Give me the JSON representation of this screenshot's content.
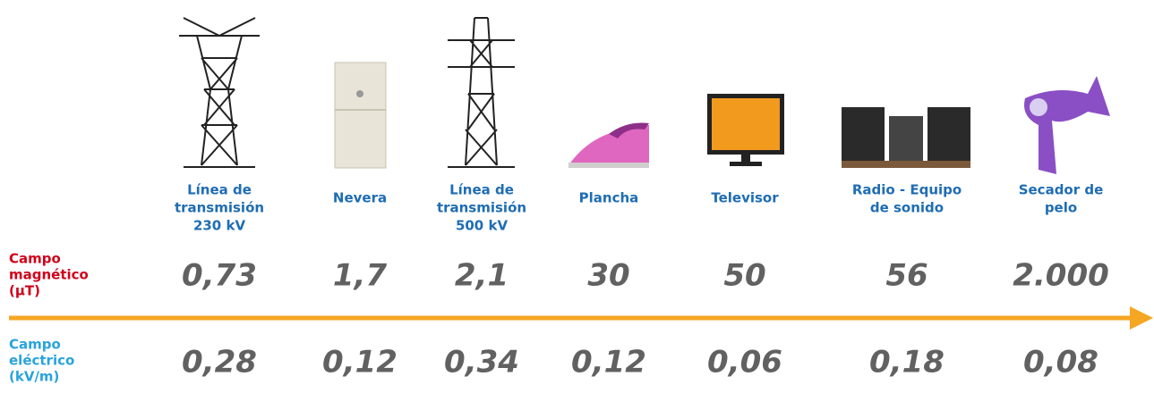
{
  "row_labels": {
    "magnetic": [
      "Campo",
      "magnético",
      "(µT)"
    ],
    "electric": [
      "Campo",
      "eléctrico",
      "(kV/m)"
    ]
  },
  "items": [
    {
      "label": [
        "Línea de",
        "transmisión",
        "230 kV"
      ],
      "magnetic": "0,73",
      "electric": "0,28"
    },
    {
      "label": [
        "Nevera"
      ],
      "magnetic": "1,7",
      "electric": "0,12"
    },
    {
      "label": [
        "Línea de",
        "transmisión",
        "500 kV"
      ],
      "magnetic": "2,1",
      "electric": "0,34"
    },
    {
      "label": [
        "Plancha"
      ],
      "magnetic": "30",
      "electric": "0,12"
    },
    {
      "label": [
        "Televisor"
      ],
      "magnetic": "50",
      "electric": "0,06"
    },
    {
      "label": [
        "Radio - Equipo",
        "de sonido"
      ],
      "magnetic": "56",
      "electric": "0,18"
    },
    {
      "label": [
        "Secador de",
        "pelo"
      ],
      "magnetic": "2.000",
      "electric": "0,08"
    }
  ]
}
